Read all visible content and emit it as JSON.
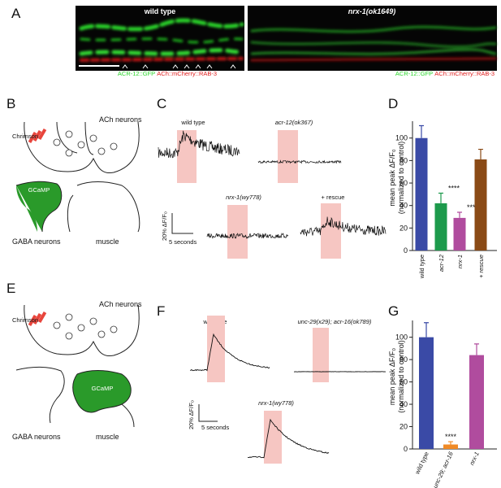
{
  "panels": {
    "letters": [
      "A",
      "B",
      "C",
      "D",
      "E",
      "F",
      "G"
    ],
    "a": {
      "left_title": "wild type",
      "right_title": "nrx-1(ok1649)",
      "legend_green": "ACR-12::GFP",
      "legend_sep": "/",
      "legend_red": "ACh::mCherry::RAB-3"
    },
    "b": {
      "chrimson": "Chrimson",
      "ach": "ACh neurons",
      "gcamp": "GCaMP",
      "gaba": "GABA neurons",
      "muscle": "muscle"
    },
    "c": {
      "traces": [
        "wild type",
        "acr-12(ok367)",
        "nrx-1(wy778)",
        "+ rescue"
      ],
      "scale_y": "20% ΔF/F₀",
      "scale_x": "5 seconds"
    },
    "e": {
      "chrimson": "Chrimson",
      "ach": "ACh neurons",
      "gcamp": "GCaMP",
      "gaba": "GABA neurons",
      "muscle": "muscle"
    },
    "f": {
      "traces": [
        "wild type",
        "unc-29(x29); acr-16(ok789)",
        "nrx-1(wy778)"
      ],
      "scale_y": "20% ΔF/F₀",
      "scale_x": "5 seconds"
    }
  },
  "chart_data": [
    {
      "type": "bar",
      "ylabel": [
        "mean peak ΔF/F₀",
        "(normalized to control)"
      ],
      "categories": [
        "wild type",
        "acr-12",
        "nrx-1",
        "+ rescue"
      ],
      "values": [
        100,
        42,
        29,
        81
      ],
      "errors": [
        11,
        9,
        5,
        9
      ],
      "colors": [
        "#3a4aa6",
        "#1d9a4c",
        "#b04c9e",
        "#8a4a16"
      ],
      "significance": [
        null,
        "****",
        "****",
        null
      ],
      "ylim": [
        0,
        115
      ],
      "yticks": [
        0,
        20,
        40,
        60,
        80,
        100
      ]
    },
    {
      "type": "bar",
      "ylabel": [
        "mean peak ΔF/F₀",
        "(normalized to control)"
      ],
      "categories": [
        "wild type",
        "unc-29; acr-16",
        "nrx-1"
      ],
      "values": [
        100,
        4,
        84
      ],
      "errors": [
        13,
        2.5,
        10
      ],
      "colors": [
        "#3a4aa6",
        "#f08a26",
        "#b04c9e"
      ],
      "significance": [
        null,
        "****",
        null
      ],
      "ylim": [
        0,
        115
      ],
      "yticks": [
        0,
        20,
        40,
        60,
        80,
        100
      ]
    }
  ]
}
